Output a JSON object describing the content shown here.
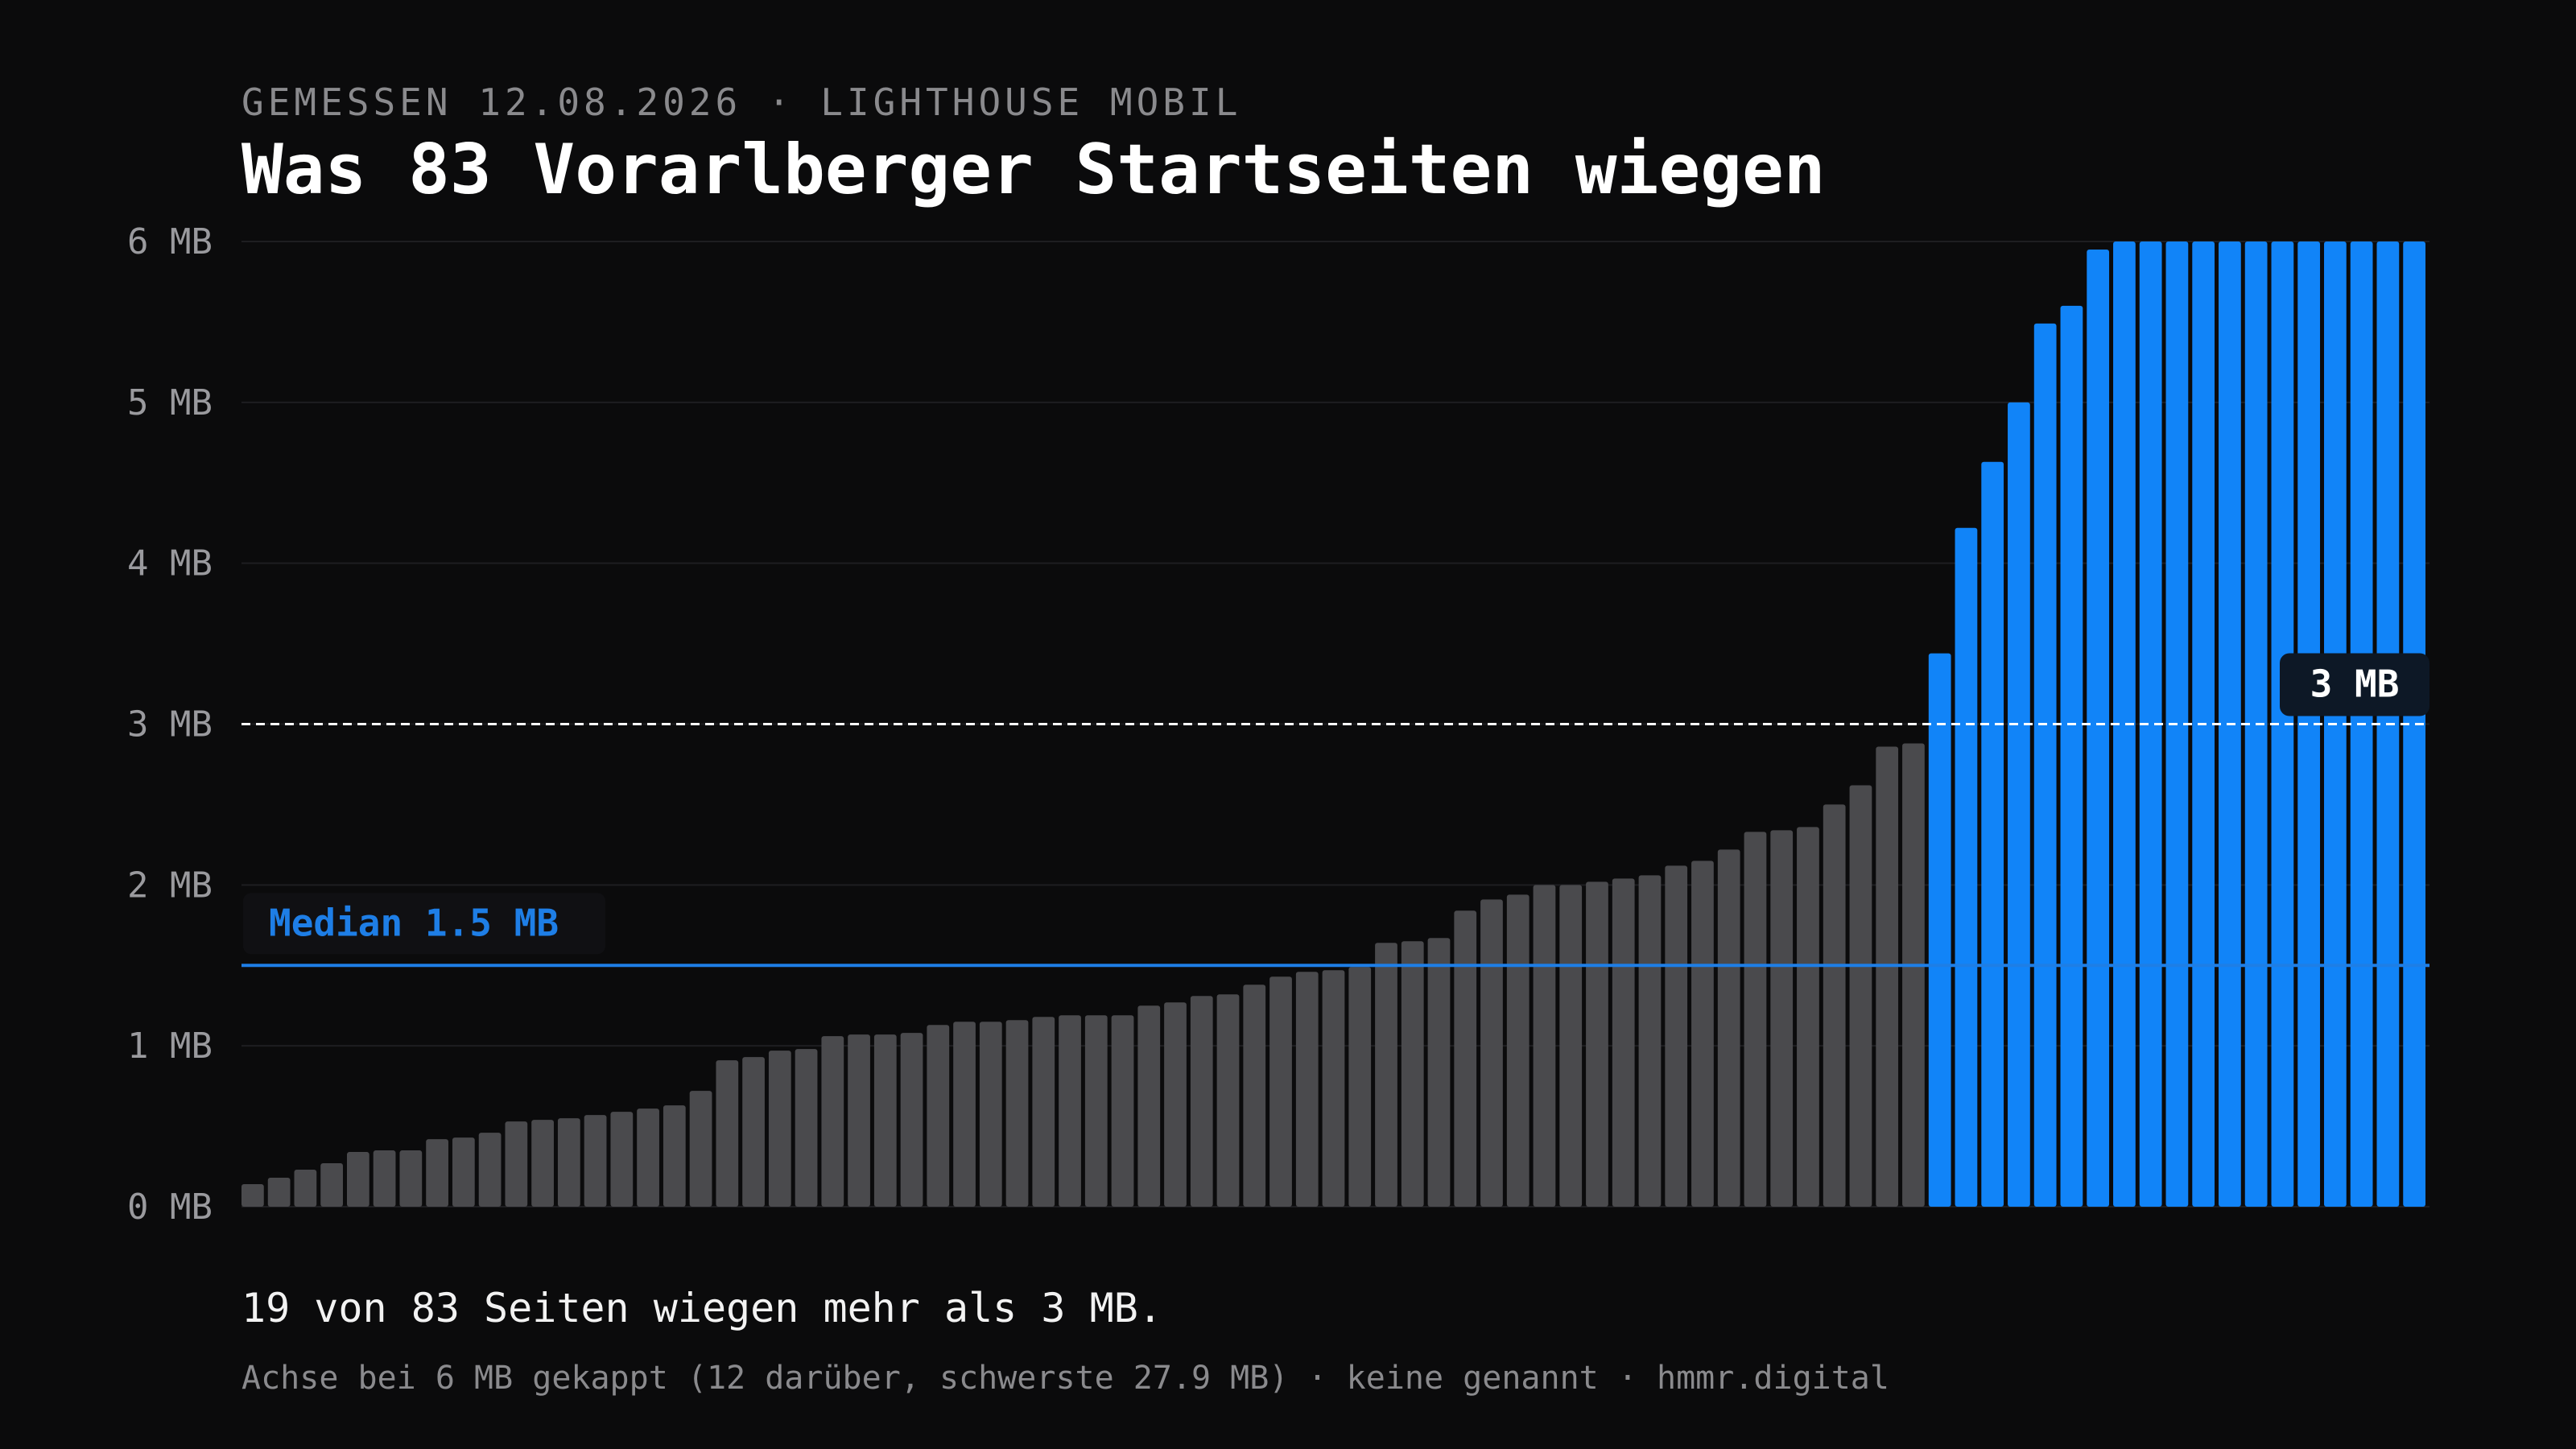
{
  "header": {
    "kicker": "GEMESSEN 12.08.2026 · LIGHTHOUSE MOBIL",
    "title": "Was 83 Vorarlberger Startseiten wiegen"
  },
  "annotations": {
    "median_label": "Median 1.5 MB",
    "threshold_label": "3 MB"
  },
  "footer": {
    "summary": "19 von 83 Seiten wiegen mehr als 3 MB.",
    "footnote": "Achse bei 6 MB gekappt (12 darüber, schwerste 27.9 MB) · keine genannt · hmmr.digital"
  },
  "colors": {
    "background": "#0b0b0c",
    "bar_default": "#4a4a4d",
    "bar_highlight": "#1184f8",
    "median_line": "#1e7ee6",
    "threshold_line": "#ffffff",
    "grid": "#1e1e21"
  },
  "chart_data": {
    "type": "bar",
    "title": "Was 83 Vorarlberger Startseiten wiegen",
    "ylabel": "",
    "xlabel": "",
    "unit": "MB",
    "ylim": [
      0,
      6
    ],
    "yticks": [
      0,
      1,
      2,
      3,
      4,
      5,
      6
    ],
    "ytick_labels": [
      "0 MB",
      "1 MB",
      "2 MB",
      "3 MB",
      "4 MB",
      "5 MB",
      "6 MB"
    ],
    "grid": true,
    "sorted": "ascending",
    "median": 1.5,
    "threshold": 3,
    "axis_cap": 6,
    "values": [
      0.14,
      0.18,
      0.23,
      0.27,
      0.34,
      0.35,
      0.35,
      0.42,
      0.43,
      0.46,
      0.53,
      0.54,
      0.55,
      0.57,
      0.59,
      0.61,
      0.63,
      0.72,
      0.91,
      0.93,
      0.97,
      0.98,
      1.06,
      1.07,
      1.07,
      1.08,
      1.13,
      1.15,
      1.15,
      1.16,
      1.18,
      1.19,
      1.19,
      1.19,
      1.25,
      1.27,
      1.31,
      1.32,
      1.38,
      1.43,
      1.46,
      1.47,
      1.49,
      1.64,
      1.65,
      1.67,
      1.84,
      1.91,
      1.94,
      2.0,
      2.0,
      2.02,
      2.04,
      2.06,
      2.12,
      2.15,
      2.22,
      2.33,
      2.34,
      2.36,
      2.5,
      2.62,
      2.86,
      2.88,
      3.44,
      4.22,
      4.63,
      5.0,
      5.49,
      5.6,
      5.95,
      6.0,
      6.0,
      6.0,
      6.0,
      6.0,
      6.0,
      6.0,
      6.0,
      6.0,
      6.0,
      6.0,
      6.0
    ]
  }
}
